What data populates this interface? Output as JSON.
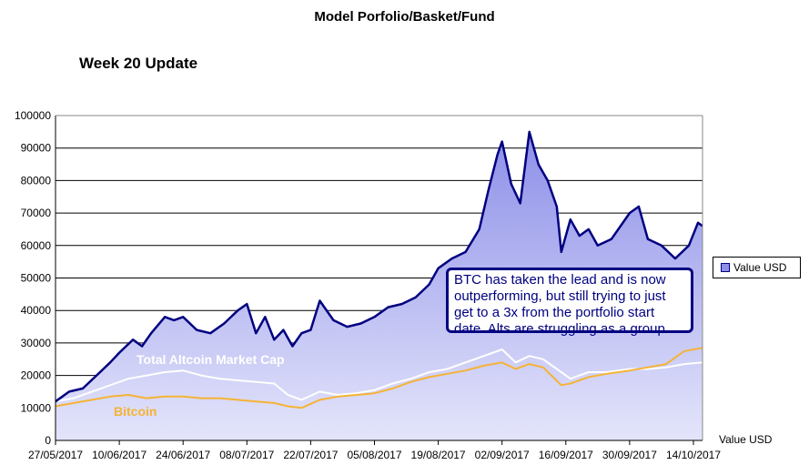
{
  "title": "Model Porfolio/Basket/Fund",
  "subtitle": "Week 20 Update",
  "legend_label": "Value USD",
  "axis_title": "Value USD",
  "callout_text": "BTC has taken the lead and is now outperforming, but still trying to just get to a 3x from the portfolio start date. Alts are struggling as a group.",
  "series_labels": {
    "altcoin": "Total Altcoin Market Cap",
    "bitcoin": "Bitcoin"
  },
  "colors": {
    "portfolio_line": "#000080",
    "portfolio_fill_top": "#8d8fe8",
    "portfolio_fill_bottom": "#e4e5fb",
    "altcoin_line": "#ffffff",
    "bitcoin_line": "#f5b335"
  },
  "chart_data": {
    "type": "area",
    "title": "Model Porfolio/Basket/Fund",
    "subtitle": "Week 20 Update",
    "ylabel": "Value USD",
    "x_ticks": [
      "27/05/2017",
      "10/06/2017",
      "24/06/2017",
      "08/07/2017",
      "22/07/2017",
      "05/08/2017",
      "19/08/2017",
      "02/09/2017",
      "16/09/2017",
      "30/09/2017",
      "14/10/2017"
    ],
    "y_ticks": [
      "0",
      "10000",
      "20000",
      "30000",
      "40000",
      "50000",
      "60000",
      "70000",
      "80000",
      "90000",
      "100000"
    ],
    "ylim": [
      0,
      100000
    ],
    "xlim": [
      "27/05/2017",
      "16/10/2017"
    ],
    "grid": true,
    "legend_position": "right",
    "series": [
      {
        "name": "Value USD",
        "type": "area",
        "x": [
          "27/05/2017",
          "30/05/2017",
          "02/06/2017",
          "05/06/2017",
          "08/06/2017",
          "10/06/2017",
          "13/06/2017",
          "15/06/2017",
          "17/06/2017",
          "20/06/2017",
          "22/06/2017",
          "24/06/2017",
          "27/06/2017",
          "30/06/2017",
          "03/07/2017",
          "06/07/2017",
          "08/07/2017",
          "10/07/2017",
          "12/07/2017",
          "14/07/2017",
          "16/07/2017",
          "18/07/2017",
          "20/07/2017",
          "22/07/2017",
          "24/07/2017",
          "27/07/2017",
          "30/07/2017",
          "02/08/2017",
          "05/08/2017",
          "08/08/2017",
          "11/08/2017",
          "14/08/2017",
          "17/08/2017",
          "19/08/2017",
          "22/08/2017",
          "25/08/2017",
          "28/08/2017",
          "30/08/2017",
          "01/09/2017",
          "02/09/2017",
          "04/09/2017",
          "06/09/2017",
          "08/09/2017",
          "10/09/2017",
          "12/09/2017",
          "14/09/2017",
          "15/09/2017",
          "17/09/2017",
          "19/09/2017",
          "21/09/2017",
          "23/09/2017",
          "26/09/2017",
          "30/09/2017",
          "02/10/2017",
          "04/10/2017",
          "07/10/2017",
          "10/10/2017",
          "13/10/2017",
          "15/10/2017",
          "16/10/2017"
        ],
        "values": [
          12000,
          15000,
          16000,
          20000,
          24000,
          27000,
          31000,
          29000,
          33000,
          38000,
          37000,
          38000,
          34000,
          33000,
          36000,
          40000,
          42000,
          33000,
          38000,
          31000,
          34000,
          29000,
          33000,
          34000,
          43000,
          37000,
          35000,
          36000,
          38000,
          41000,
          42000,
          44000,
          48000,
          53000,
          56000,
          58000,
          65000,
          77000,
          88000,
          92000,
          79000,
          73000,
          95000,
          85000,
          80000,
          72000,
          58000,
          68000,
          63000,
          65000,
          60000,
          62000,
          70000,
          72000,
          62000,
          60000,
          56000,
          60000,
          67000,
          66000
        ]
      },
      {
        "name": "Total Altcoin Market Cap",
        "type": "line",
        "x": [
          "27/05/2017",
          "31/05/2017",
          "04/06/2017",
          "08/06/2017",
          "12/06/2017",
          "16/06/2017",
          "20/06/2017",
          "24/06/2017",
          "28/06/2017",
          "02/07/2017",
          "06/07/2017",
          "10/07/2017",
          "14/07/2017",
          "17/07/2017",
          "20/07/2017",
          "24/07/2017",
          "28/07/2017",
          "01/08/2017",
          "05/08/2017",
          "09/08/2017",
          "13/08/2017",
          "17/08/2017",
          "21/08/2017",
          "25/08/2017",
          "29/08/2017",
          "02/09/2017",
          "05/09/2017",
          "08/09/2017",
          "11/09/2017",
          "15/09/2017",
          "17/09/2017",
          "21/09/2017",
          "25/09/2017",
          "30/09/2017",
          "04/10/2017",
          "08/10/2017",
          "12/10/2017",
          "16/10/2017"
        ],
        "values": [
          12000,
          13000,
          15000,
          17000,
          19000,
          20000,
          21000,
          21500,
          20000,
          19000,
          18500,
          18000,
          17500,
          14000,
          12500,
          15000,
          14000,
          14500,
          15500,
          17500,
          19000,
          21000,
          22000,
          24000,
          26000,
          28000,
          24000,
          26000,
          25000,
          21000,
          19000,
          21000,
          21000,
          22000,
          22000,
          22500,
          23500,
          24000
        ]
      },
      {
        "name": "Bitcoin",
        "type": "line",
        "x": [
          "27/05/2017",
          "31/05/2017",
          "04/06/2017",
          "08/06/2017",
          "12/06/2017",
          "16/06/2017",
          "20/06/2017",
          "24/06/2017",
          "28/06/2017",
          "02/07/2017",
          "06/07/2017",
          "10/07/2017",
          "14/07/2017",
          "17/07/2017",
          "20/07/2017",
          "24/07/2017",
          "28/07/2017",
          "01/08/2017",
          "05/08/2017",
          "09/08/2017",
          "13/08/2017",
          "17/08/2017",
          "21/08/2017",
          "25/08/2017",
          "29/08/2017",
          "02/09/2017",
          "05/09/2017",
          "08/09/2017",
          "11/09/2017",
          "15/09/2017",
          "17/09/2017",
          "21/09/2017",
          "25/09/2017",
          "30/09/2017",
          "04/10/2017",
          "08/10/2017",
          "12/10/2017",
          "16/10/2017"
        ],
        "values": [
          10500,
          11500,
          12500,
          13500,
          14000,
          13000,
          13500,
          13500,
          13000,
          13000,
          12500,
          12000,
          11500,
          10500,
          10000,
          12500,
          13500,
          14000,
          14500,
          16000,
          18000,
          19500,
          20500,
          21500,
          23000,
          24000,
          22000,
          23500,
          22500,
          17000,
          17500,
          19500,
          20500,
          21500,
          22500,
          23500,
          27500,
          28500
        ]
      }
    ]
  }
}
